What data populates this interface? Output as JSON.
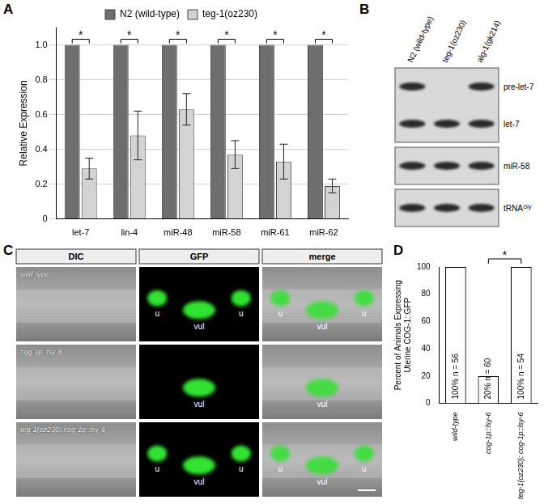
{
  "panel_labels": [
    "A",
    "B",
    "C",
    "D"
  ],
  "chart_data": [
    {
      "type": "bar",
      "categories": [
        "let-7",
        "lin-4",
        "miR-48",
        "miR-58",
        "miR-61",
        "miR-62"
      ],
      "series": [
        {
          "name": "N2 (wild-type)",
          "color": "#6e6e6e",
          "values": [
            1,
            1,
            1,
            1,
            1,
            1
          ]
        },
        {
          "name": "teg-1(oz230)",
          "color": "#d3d3d3",
          "values": [
            0.29,
            0.48,
            0.63,
            0.37,
            0.33,
            0.19
          ],
          "errors": [
            0.06,
            0.14,
            0.09,
            0.08,
            0.1,
            0.04
          ]
        }
      ],
      "ylabel": "Relative Expression",
      "ylim": [
        0,
        1.1
      ],
      "yticks": [
        0,
        0.2,
        0.4,
        0.6,
        0.8,
        {
          "value": 1,
          "label": "1.0"
        }
      ],
      "grid": true,
      "legend": "top",
      "annotations": [
        "*",
        "*",
        "*",
        "*",
        "*",
        "*"
      ]
    },
    {
      "type": "bar",
      "categories": [
        "wild-type",
        "cog-1p::lsy-6",
        "teg-1(oz230); cog-1p::lsy-6"
      ],
      "values": [
        100,
        20,
        100
      ],
      "value_labels": [
        "100% n = 56",
        "20% n = 60",
        "100% n = 54"
      ],
      "data_labels": true,
      "color": "#ffffff",
      "ylabel": [
        "Percent of Animals Expressing",
        "Uterine COG-1::GFP"
      ],
      "ylim": [
        0,
        100
      ],
      "yticks": [
        0,
        20,
        40,
        60,
        80,
        100
      ],
      "grid": false,
      "annotations": [
        {
          "text": "*",
          "between": [
            1,
            2
          ]
        }
      ]
    }
  ],
  "blot": {
    "lanes": [
      "N2 (wild-type)",
      "teg-1(oz230)",
      "alg-1(gk214)"
    ],
    "groups": [
      {
        "rows": [
          {
            "label": "pre-let-7",
            "bands": [
              true,
              false,
              true
            ]
          },
          {
            "label": "let-7",
            "bands": [
              true,
              true,
              true
            ]
          }
        ]
      },
      {
        "rows": [
          {
            "label": "miR-58",
            "bands": [
              true,
              true,
              true
            ]
          }
        ]
      },
      {
        "rows": [
          {
            "label": "tRNA",
            "superscript": "Gly",
            "bands": [
              true,
              true,
              true
            ]
          }
        ]
      }
    ]
  },
  "micrographs": {
    "columns": [
      "DIC",
      "GFP",
      "merge"
    ],
    "rows": [
      {
        "label": "wild-type",
        "marks": [
          "u",
          "vul",
          "u"
        ]
      },
      {
        "label": "cog-1p::lsy-6",
        "marks": [
          "vul"
        ]
      },
      {
        "label": "teg-1(oz230);cog-1p::lsy-6",
        "marks": [
          "u",
          "vul",
          "u"
        ]
      }
    ]
  }
}
